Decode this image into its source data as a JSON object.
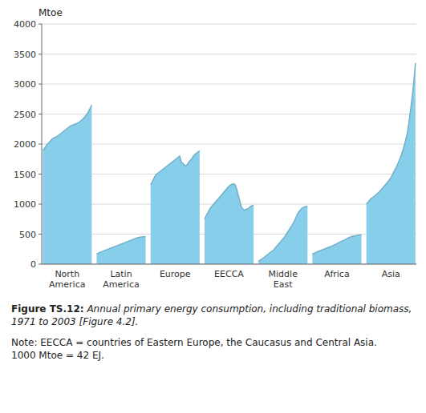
{
  "chart_data": {
    "type": "area",
    "y_label": "Mtoe",
    "ylim": [
      0,
      4000
    ],
    "yticks": [
      0,
      500,
      1000,
      1500,
      2000,
      2500,
      3000,
      3500,
      4000
    ],
    "grid": true,
    "color": "#87CEEB",
    "series": [
      {
        "name": "North\nAmerica",
        "values": [
          1900,
          1920,
          1960,
          2000,
          2020,
          2050,
          2080,
          2100,
          2110,
          2120,
          2140,
          2160,
          2180,
          2200,
          2220,
          2240,
          2260,
          2280,
          2300,
          2310,
          2320,
          2330,
          2340,
          2350,
          2370,
          2390,
          2410,
          2440,
          2470,
          2500,
          2550,
          2600,
          2650
        ]
      },
      {
        "name": "Latin\nAmerica",
        "values": [
          170,
          180,
          195,
          205,
          215,
          225,
          235,
          245,
          255,
          265,
          275,
          285,
          295,
          305,
          315,
          325,
          335,
          345,
          355,
          365,
          375,
          385,
          395,
          405,
          415,
          425,
          435,
          442,
          448,
          452,
          455,
          458,
          460
        ]
      },
      {
        "name": "Europe",
        "values": [
          1320,
          1370,
          1420,
          1470,
          1500,
          1520,
          1540,
          1560,
          1580,
          1600,
          1620,
          1640,
          1660,
          1680,
          1700,
          1720,
          1740,
          1760,
          1780,
          1800,
          1700,
          1680,
          1650,
          1640,
          1660,
          1700,
          1730,
          1760,
          1800,
          1830,
          1850,
          1870,
          1890
        ]
      },
      {
        "name": "EECCA",
        "values": [
          750,
          800,
          850,
          900,
          940,
          970,
          1000,
          1030,
          1060,
          1090,
          1120,
          1150,
          1180,
          1210,
          1240,
          1270,
          1300,
          1320,
          1330,
          1340,
          1320,
          1250,
          1150,
          1050,
          950,
          920,
          900,
          910,
          920,
          940,
          960,
          970,
          980
        ]
      },
      {
        "name": "Middle\nEast",
        "values": [
          50,
          65,
          80,
          100,
          120,
          140,
          160,
          180,
          200,
          220,
          240,
          270,
          300,
          330,
          360,
          390,
          420,
          450,
          490,
          530,
          570,
          610,
          650,
          700,
          750,
          810,
          860,
          890,
          920,
          940,
          950,
          960,
          960
        ]
      },
      {
        "name": "Africa",
        "values": [
          170,
          180,
          192,
          204,
          214,
          224,
          234,
          244,
          254,
          264,
          274,
          284,
          294,
          304,
          316,
          328,
          342,
          356,
          368,
          380,
          392,
          404,
          418,
          432,
          445,
          455,
          462,
          468,
          472,
          476,
          480,
          485,
          490
        ]
      },
      {
        "name": "Asia",
        "values": [
          1000,
          1030,
          1060,
          1090,
          1110,
          1130,
          1150,
          1170,
          1195,
          1220,
          1250,
          1280,
          1310,
          1340,
          1370,
          1400,
          1440,
          1490,
          1540,
          1590,
          1640,
          1700,
          1760,
          1830,
          1910,
          2000,
          2100,
          2220,
          2400,
          2600,
          2800,
          3050,
          3350
        ]
      }
    ],
    "annotations": [
      "Figure TS.12:",
      " Annual primary energy consumption, including traditional biomass, 1971 to 2003 [Figure 4.2].",
      "Note: EECCA = countries of Eastern Europe, the Caucasus and Central Asia.\n1000 Mtoe = 42 EJ."
    ]
  }
}
